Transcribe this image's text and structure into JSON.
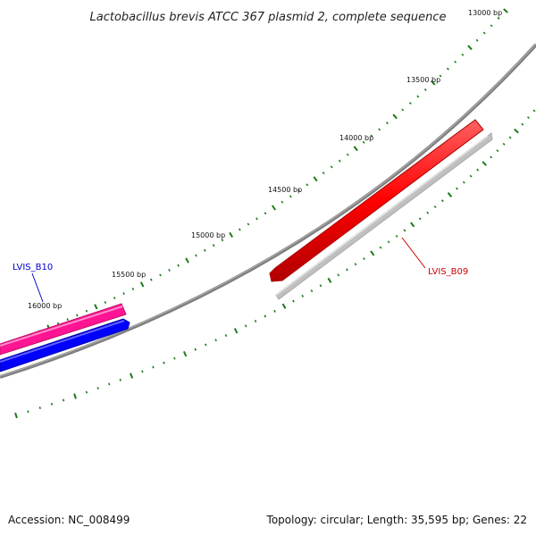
{
  "title": "Lactobacillus brevis ATCC 367 plasmid 2, complete sequence",
  "scale": {
    "tick_color": "#1a7a1a",
    "ticks": [
      {
        "pos": 13000,
        "label": "13000 bp"
      },
      {
        "pos": 13500,
        "label": "13500 bp"
      },
      {
        "pos": 14000,
        "label": "14000 bp"
      },
      {
        "pos": 14500,
        "label": "14500 bp"
      },
      {
        "pos": 15000,
        "label": "15000 bp"
      },
      {
        "pos": 15500,
        "label": "15500 bp"
      },
      {
        "pos": 16000,
        "label": "16000 bp"
      }
    ]
  },
  "backbone_color": "#808080",
  "genes": [
    {
      "name": "LVIS_B09",
      "strand": "forward",
      "color": "#ff0000",
      "label_color": "#cc0000"
    },
    {
      "name": "LVIS_B10",
      "strand": "forward",
      "color": "#ff1493",
      "label_color": "#0000cc"
    }
  ],
  "features": [
    {
      "name": "LVIS_B09 shadow",
      "color": "#c0c0c0"
    },
    {
      "name": "LVIS_B10 reverse",
      "color": "#0000ff"
    }
  ],
  "footer": {
    "accession": "Accession: NC_008499",
    "summary": "Topology: circular; Length: 35,595 bp; Genes: 22"
  }
}
